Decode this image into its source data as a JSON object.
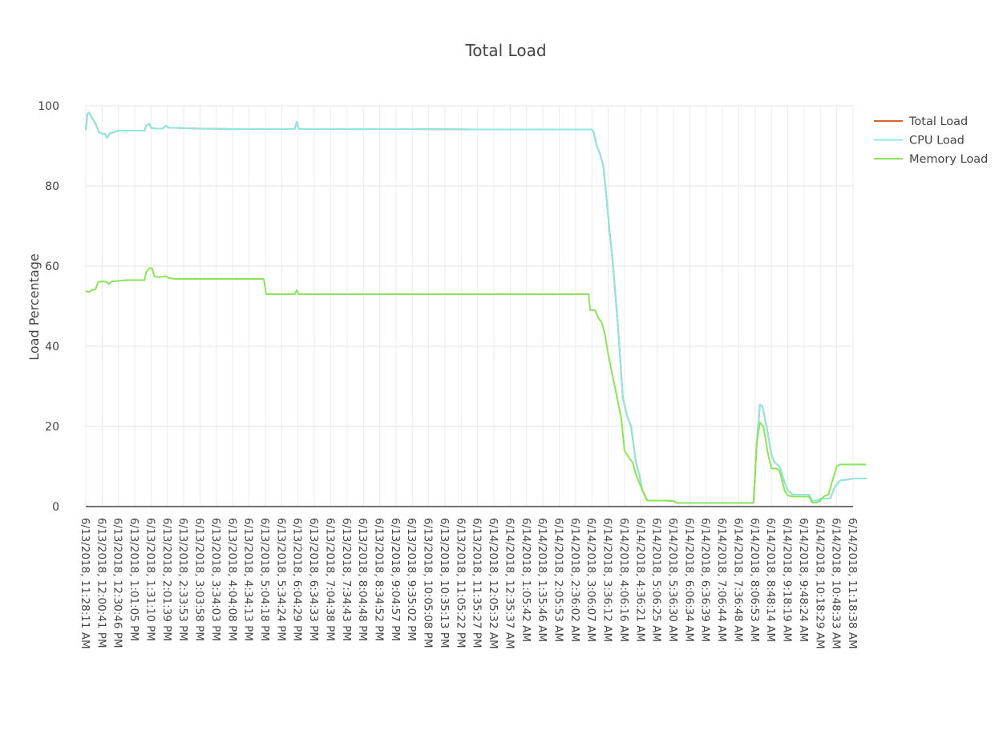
{
  "chart_data": {
    "type": "line",
    "title": "Total Load",
    "ylabel": "Load Percentage",
    "xlabel": "",
    "ylim": [
      0,
      100
    ],
    "yticks": [
      0,
      20,
      40,
      60,
      80,
      100
    ],
    "grid": true,
    "legend_position": "top-right",
    "x_tick_labels": [
      "6/13/2018, 11:28:11 AM",
      "6/13/2018, 12:00:41 PM",
      "6/13/2018, 12:30:46 PM",
      "6/13/2018, 1:01:05 PM",
      "6/13/2018, 1:31:10 PM",
      "6/13/2018, 2:01:39 PM",
      "6/13/2018, 2:33:53 PM",
      "6/13/2018, 3:03:58 PM",
      "6/13/2018, 3:34:03 PM",
      "6/13/2018, 4:04:08 PM",
      "6/13/2018, 4:34:13 PM",
      "6/13/2018, 5:04:18 PM",
      "6/13/2018, 5:34:24 PM",
      "6/13/2018, 6:04:29 PM",
      "6/13/2018, 6:34:33 PM",
      "6/13/2018, 7:04:38 PM",
      "6/13/2018, 7:34:43 PM",
      "6/13/2018, 8:04:48 PM",
      "6/13/2018, 8:34:52 PM",
      "6/13/2018, 9:04:57 PM",
      "6/13/2018, 9:35:02 PM",
      "6/13/2018, 10:05:08 PM",
      "6/13/2018, 10:35:13 PM",
      "6/13/2018, 11:05:22 PM",
      "6/13/2018, 11:35:27 PM",
      "6/14/2018, 12:05:32 AM",
      "6/14/2018, 12:35:37 AM",
      "6/14/2018, 1:05:42 AM",
      "6/14/2018, 1:35:46 AM",
      "6/14/2018, 2:05:53 AM",
      "6/14/2018, 2:36:02 AM",
      "6/14/2018, 3:06:07 AM",
      "6/14/2018, 3:36:12 AM",
      "6/14/2018, 4:06:16 AM",
      "6/14/2018, 4:36:21 AM",
      "6/14/2018, 5:06:25 AM",
      "6/14/2018, 5:36:30 AM",
      "6/14/2018, 6:06:34 AM",
      "6/14/2018, 6:36:39 AM",
      "6/14/2018, 7:06:44 AM",
      "6/14/2018, 7:36:48 AM",
      "6/14/2018, 8:06:53 AM",
      "6/14/2018, 8:48:14 AM",
      "6/14/2018, 9:18:19 AM",
      "6/14/2018, 9:48:24 AM",
      "6/14/2018, 10:18:29 AM",
      "6/14/2018, 10:48:33 AM",
      "6/14/2018, 11:18:38 AM"
    ],
    "series": [
      {
        "name": "Total Load",
        "color": "#d9622b",
        "points": [
          [
            0,
            94
          ],
          [
            0.1,
            98
          ],
          [
            0.2,
            98.3
          ],
          [
            0.3,
            97.5
          ],
          [
            0.45,
            96.5
          ],
          [
            0.6,
            95.5
          ],
          [
            0.8,
            93.5
          ],
          [
            1,
            93
          ],
          [
            1.2,
            93
          ],
          [
            1.3,
            92
          ],
          [
            1.5,
            93.2
          ],
          [
            1.8,
            93.5
          ],
          [
            2,
            93.8
          ],
          [
            2.5,
            93.8
          ],
          [
            3,
            93.8
          ],
          [
            3.6,
            93.8
          ],
          [
            3.7,
            95
          ],
          [
            3.9,
            95.5
          ],
          [
            4.0,
            94.5
          ],
          [
            4.3,
            94.3
          ],
          [
            4.7,
            94.3
          ],
          [
            4.9,
            95
          ],
          [
            5.1,
            94.5
          ],
          [
            5.5,
            94.5
          ],
          [
            7,
            94.3
          ],
          [
            9,
            94.2
          ],
          [
            11,
            94.2
          ],
          [
            12.8,
            94.2
          ],
          [
            12.92,
            96
          ],
          [
            13.05,
            94.2
          ],
          [
            16,
            94.2
          ],
          [
            20,
            94.2
          ],
          [
            24,
            94.1
          ],
          [
            28,
            94.1
          ],
          [
            31.0,
            94.1
          ],
          [
            31.1,
            93.5
          ],
          [
            31.3,
            90
          ],
          [
            31.5,
            88
          ],
          [
            31.7,
            85
          ],
          [
            31.9,
            77
          ],
          [
            32.1,
            68
          ],
          [
            32.3,
            60
          ],
          [
            32.6,
            45
          ],
          [
            32.9,
            27
          ],
          [
            33.2,
            22
          ],
          [
            33.4,
            20
          ],
          [
            33.7,
            11
          ],
          [
            33.9,
            8
          ],
          [
            34.1,
            4
          ],
          [
            34.4,
            1.5
          ],
          [
            35,
            1.5
          ],
          [
            35.5,
            1.5
          ],
          [
            36,
            1.4
          ],
          [
            36.2,
            0.9
          ],
          [
            37,
            0.9
          ],
          [
            38,
            0.9
          ],
          [
            39,
            0.9
          ],
          [
            40,
            0.9
          ],
          [
            40.9,
            0.9
          ],
          [
            41.1,
            16
          ],
          [
            41.3,
            25.5
          ],
          [
            41.45,
            25
          ],
          [
            41.7,
            20
          ],
          [
            42,
            13
          ],
          [
            42.2,
            11
          ],
          [
            42.5,
            10
          ],
          [
            42.8,
            6
          ],
          [
            43.0,
            4
          ],
          [
            43.3,
            3
          ],
          [
            43.6,
            3
          ],
          [
            44,
            3
          ],
          [
            44.3,
            3
          ],
          [
            44.5,
            1.5
          ],
          [
            44.8,
            1.5
          ],
          [
            45.0,
            2
          ],
          [
            45.3,
            2
          ],
          [
            45.6,
            2
          ],
          [
            45.9,
            5
          ],
          [
            46.2,
            6.5
          ],
          [
            46.6,
            6.7
          ],
          [
            47,
            7
          ],
          [
            47.5,
            7
          ],
          [
            47.8,
            7
          ]
        ]
      },
      {
        "name": "CPU Load",
        "color": "#8ee8de",
        "points": [
          [
            0,
            94
          ],
          [
            0.1,
            98
          ],
          [
            0.2,
            98.3
          ],
          [
            0.3,
            97.5
          ],
          [
            0.45,
            96.5
          ],
          [
            0.6,
            95.5
          ],
          [
            0.8,
            93.5
          ],
          [
            1,
            93
          ],
          [
            1.2,
            93
          ],
          [
            1.3,
            92
          ],
          [
            1.5,
            93.2
          ],
          [
            1.8,
            93.5
          ],
          [
            2,
            93.8
          ],
          [
            2.5,
            93.8
          ],
          [
            3,
            93.8
          ],
          [
            3.6,
            93.8
          ],
          [
            3.7,
            95
          ],
          [
            3.9,
            95.5
          ],
          [
            4.0,
            94.5
          ],
          [
            4.3,
            94.3
          ],
          [
            4.7,
            94.3
          ],
          [
            4.9,
            95
          ],
          [
            5.1,
            94.5
          ],
          [
            5.5,
            94.5
          ],
          [
            7,
            94.3
          ],
          [
            9,
            94.2
          ],
          [
            11,
            94.2
          ],
          [
            12.8,
            94.2
          ],
          [
            12.92,
            96
          ],
          [
            13.05,
            94.2
          ],
          [
            16,
            94.2
          ],
          [
            20,
            94.2
          ],
          [
            24,
            94.1
          ],
          [
            28,
            94.1
          ],
          [
            31.0,
            94.1
          ],
          [
            31.1,
            93.5
          ],
          [
            31.3,
            90
          ],
          [
            31.5,
            88
          ],
          [
            31.7,
            85
          ],
          [
            31.9,
            77
          ],
          [
            32.1,
            68
          ],
          [
            32.3,
            60
          ],
          [
            32.6,
            45
          ],
          [
            32.9,
            27
          ],
          [
            33.2,
            22
          ],
          [
            33.4,
            20
          ],
          [
            33.7,
            11
          ],
          [
            33.9,
            8
          ],
          [
            34.1,
            4
          ],
          [
            34.4,
            1.5
          ],
          [
            35,
            1.5
          ],
          [
            35.5,
            1.5
          ],
          [
            36,
            1.4
          ],
          [
            36.2,
            0.9
          ],
          [
            37,
            0.9
          ],
          [
            38,
            0.9
          ],
          [
            39,
            0.9
          ],
          [
            40,
            0.9
          ],
          [
            40.9,
            0.9
          ],
          [
            41.1,
            16
          ],
          [
            41.3,
            25.5
          ],
          [
            41.45,
            25
          ],
          [
            41.7,
            20
          ],
          [
            42,
            13
          ],
          [
            42.2,
            11
          ],
          [
            42.5,
            10
          ],
          [
            42.8,
            6
          ],
          [
            43.0,
            4
          ],
          [
            43.3,
            3
          ],
          [
            43.6,
            3
          ],
          [
            44,
            3
          ],
          [
            44.3,
            3
          ],
          [
            44.5,
            1.5
          ],
          [
            44.8,
            1.5
          ],
          [
            45.0,
            2
          ],
          [
            45.3,
            2
          ],
          [
            45.6,
            2
          ],
          [
            45.9,
            5
          ],
          [
            46.2,
            6.5
          ],
          [
            46.6,
            6.7
          ],
          [
            47,
            7
          ],
          [
            47.5,
            7
          ],
          [
            47.8,
            7
          ]
        ]
      },
      {
        "name": "Memory Load",
        "color": "#8de35b",
        "points": [
          [
            0,
            53.8
          ],
          [
            0.2,
            53.5
          ],
          [
            0.35,
            54
          ],
          [
            0.6,
            54.2
          ],
          [
            0.75,
            56
          ],
          [
            1.0,
            56.2
          ],
          [
            1.3,
            56
          ],
          [
            1.4,
            55.5
          ],
          [
            1.6,
            56.2
          ],
          [
            2,
            56.3
          ],
          [
            2.5,
            56.5
          ],
          [
            3.6,
            56.5
          ],
          [
            3.7,
            58.5
          ],
          [
            3.9,
            59.5
          ],
          [
            4.05,
            59.5
          ],
          [
            4.2,
            57.5
          ],
          [
            4.5,
            57.2
          ],
          [
            4.9,
            57.5
          ],
          [
            5.1,
            57
          ],
          [
            5.5,
            56.8
          ],
          [
            7,
            56.8
          ],
          [
            9,
            56.8
          ],
          [
            10.9,
            56.8
          ],
          [
            11.05,
            53
          ],
          [
            12,
            53
          ],
          [
            12.8,
            53
          ],
          [
            12.92,
            54
          ],
          [
            13.05,
            53
          ],
          [
            16,
            53
          ],
          [
            20,
            53
          ],
          [
            24,
            53
          ],
          [
            28,
            53
          ],
          [
            30.8,
            53
          ],
          [
            30.9,
            49
          ],
          [
            31.2,
            49
          ],
          [
            31.4,
            47
          ],
          [
            31.6,
            46
          ],
          [
            31.8,
            43
          ],
          [
            32.0,
            38
          ],
          [
            32.2,
            34
          ],
          [
            32.5,
            28
          ],
          [
            32.8,
            22
          ],
          [
            33.0,
            14
          ],
          [
            33.3,
            12
          ],
          [
            33.5,
            11
          ],
          [
            33.7,
            8
          ],
          [
            33.9,
            6
          ],
          [
            34.1,
            4
          ],
          [
            34.4,
            1.5
          ],
          [
            35,
            1.5
          ],
          [
            35.5,
            1.5
          ],
          [
            36,
            1.4
          ],
          [
            36.2,
            0.9
          ],
          [
            37,
            0.9
          ],
          [
            38,
            0.9
          ],
          [
            39,
            0.9
          ],
          [
            40,
            0.9
          ],
          [
            40.9,
            0.9
          ],
          [
            41.1,
            16
          ],
          [
            41.3,
            21
          ],
          [
            41.5,
            20
          ],
          [
            41.8,
            13
          ],
          [
            42,
            9.5
          ],
          [
            42.3,
            9.5
          ],
          [
            42.5,
            9
          ],
          [
            42.8,
            4
          ],
          [
            43.0,
            2.8
          ],
          [
            43.3,
            2.5
          ],
          [
            43.6,
            2.5
          ],
          [
            44.3,
            2.5
          ],
          [
            44.5,
            1
          ],
          [
            44.8,
            1
          ],
          [
            45.0,
            1.5
          ],
          [
            45.2,
            2.5
          ],
          [
            45.5,
            3
          ],
          [
            45.7,
            6
          ],
          [
            46.0,
            10
          ],
          [
            46.2,
            10.5
          ],
          [
            47,
            10.5
          ],
          [
            47.5,
            10.5
          ],
          [
            47.8,
            10.5
          ]
        ]
      }
    ]
  }
}
